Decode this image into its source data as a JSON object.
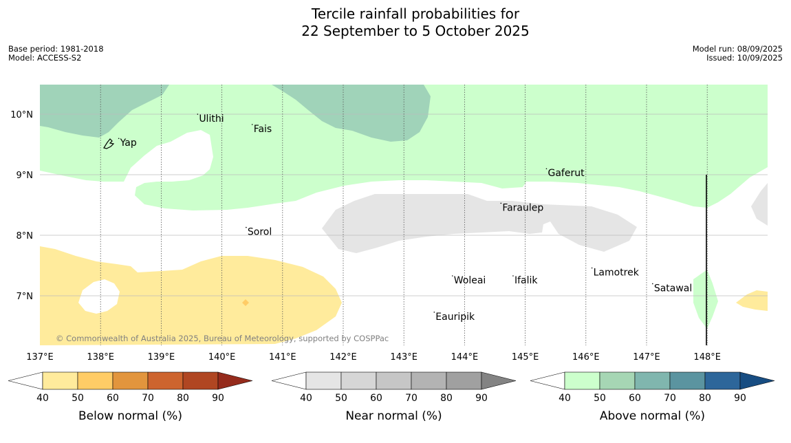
{
  "title": {
    "line1": "Tercile rainfall probabilities for",
    "line2": "22 September to 5 October 2025"
  },
  "meta": {
    "base_period": "Base period: 1981-2018",
    "model": "Model: ACCESS-S2",
    "model_run": "Model run: 08/09/2025",
    "issued": "Issued: 10/09/2025"
  },
  "map": {
    "lon_ticks": [
      "137°E",
      "138°E",
      "139°E",
      "140°E",
      "141°E",
      "142°E",
      "143°E",
      "144°E",
      "145°E",
      "146°E",
      "147°E",
      "148°E"
    ],
    "lat_ticks": [
      "10°N",
      "9°N",
      "8°N",
      "7°N"
    ],
    "extent": {
      "lon": [
        137,
        149
      ],
      "lat": [
        6.2,
        10.5
      ]
    },
    "places": [
      {
        "name": "Yap",
        "lon": 138.3,
        "lat": 9.52
      },
      {
        "name": "Ulithi",
        "lon": 139.6,
        "lat": 9.92
      },
      {
        "name": "Fais",
        "lon": 140.5,
        "lat": 9.75
      },
      {
        "name": "Gaferut",
        "lon": 145.35,
        "lat": 9.02
      },
      {
        "name": "Faraulep",
        "lon": 144.6,
        "lat": 8.45
      },
      {
        "name": "Sorol",
        "lon": 140.4,
        "lat": 8.05
      },
      {
        "name": "Woleai",
        "lon": 143.8,
        "lat": 7.25
      },
      {
        "name": "Ifalik",
        "lon": 144.8,
        "lat": 7.25
      },
      {
        "name": "Lamotrek",
        "lon": 146.1,
        "lat": 7.38
      },
      {
        "name": "Satawal",
        "lon": 147.1,
        "lat": 7.12
      },
      {
        "name": "Eauripik",
        "lon": 143.5,
        "lat": 6.65
      }
    ],
    "copyright": "© Commonwealth of Australia 2025, Bureau of Meteorology, supported by COSPPac",
    "colors": {
      "above_40_50": "#ccffcc",
      "above_50_60": "#a0d3b9",
      "near_40_50": "#e5e5e5",
      "below_40_50": "#ffeb9c",
      "below_50_60": "#ffcc66",
      "land": "#000000"
    }
  },
  "legend": {
    "tick_values": [
      "40",
      "50",
      "60",
      "70",
      "80",
      "90"
    ],
    "below": {
      "title": "Below normal (%)",
      "colors": [
        "#ffeb9c",
        "#ffcc66",
        "#e2953d",
        "#cd642e",
        "#b04622",
        "#952b1c"
      ]
    },
    "near": {
      "title": "Near normal (%)",
      "colors": [
        "#e5e5e5",
        "#d6d6d6",
        "#c6c6c6",
        "#b3b3b3",
        "#a0a0a0",
        "#838383"
      ]
    },
    "above": {
      "title": "Above normal (%)",
      "colors": [
        "#ccffcc",
        "#a6d6b4",
        "#80b6ae",
        "#5b94a0",
        "#2d669a",
        "#174d82"
      ]
    }
  }
}
